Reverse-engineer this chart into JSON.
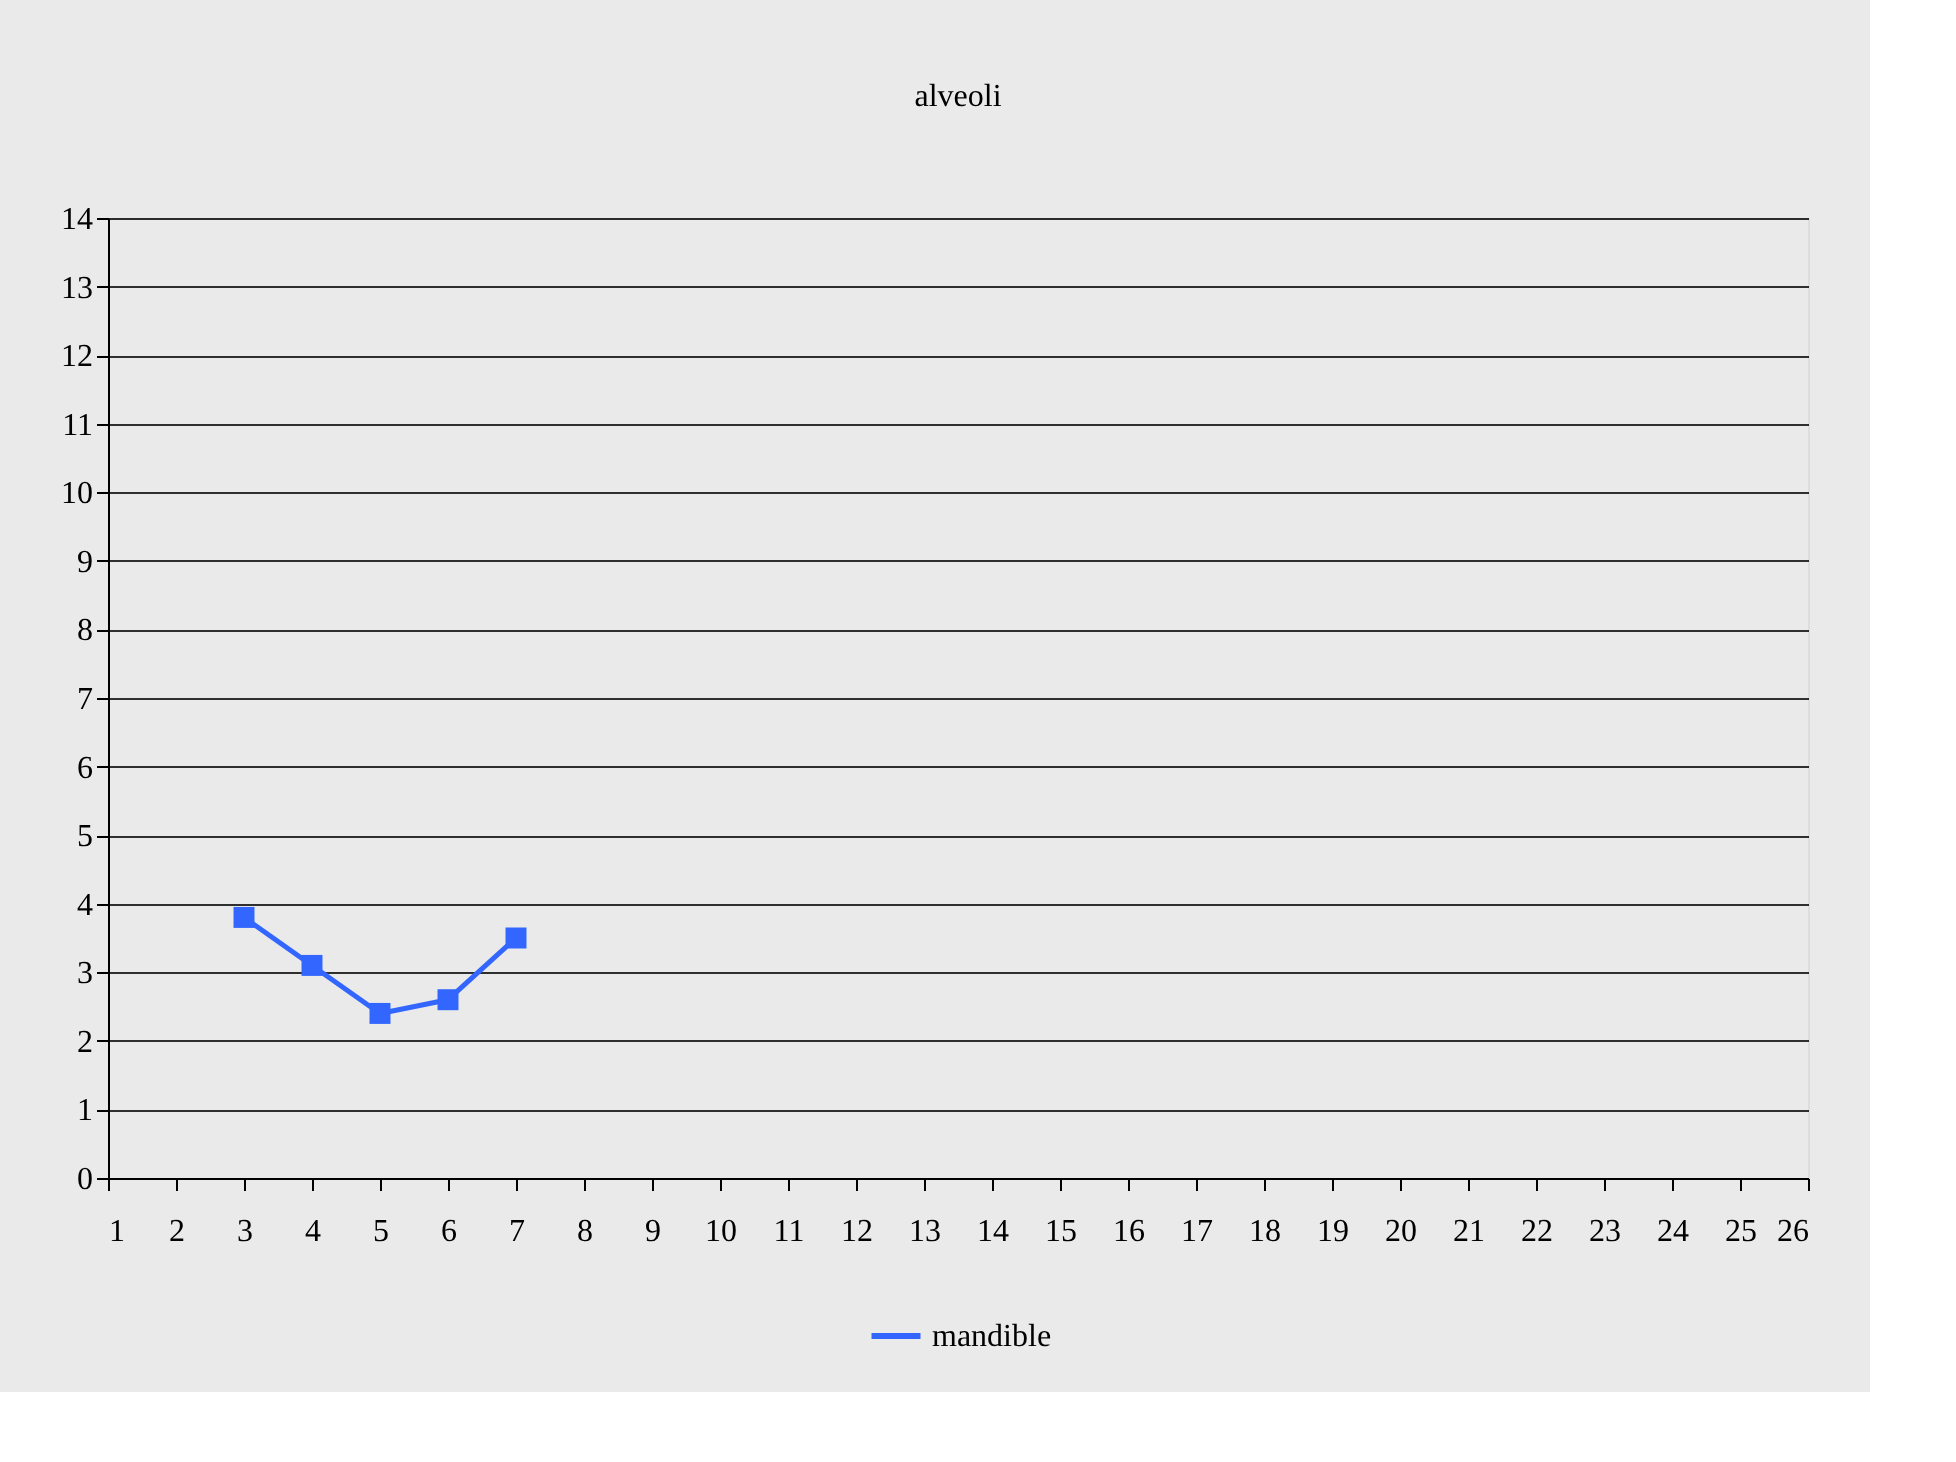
{
  "chart_data": {
    "type": "line",
    "title": "alveoli",
    "x": [
      3,
      4,
      5,
      6,
      7
    ],
    "series": [
      {
        "name": "mandible",
        "color": "#3366ff",
        "values": [
          3.8,
          3.1,
          2.4,
          2.6,
          3.5
        ]
      }
    ],
    "xlim": [
      1,
      26
    ],
    "xticks": [
      1,
      2,
      3,
      4,
      5,
      6,
      7,
      8,
      9,
      10,
      11,
      12,
      13,
      14,
      15,
      16,
      17,
      18,
      19,
      20,
      21,
      22,
      23,
      24,
      25,
      26
    ],
    "ylim": [
      0,
      14
    ],
    "yticks": [
      0,
      1,
      2,
      3,
      4,
      5,
      6,
      7,
      8,
      9,
      10,
      11,
      12,
      13,
      14
    ],
    "grid": "y",
    "legend": "bottom",
    "marker": "square",
    "line_style": "solid"
  }
}
